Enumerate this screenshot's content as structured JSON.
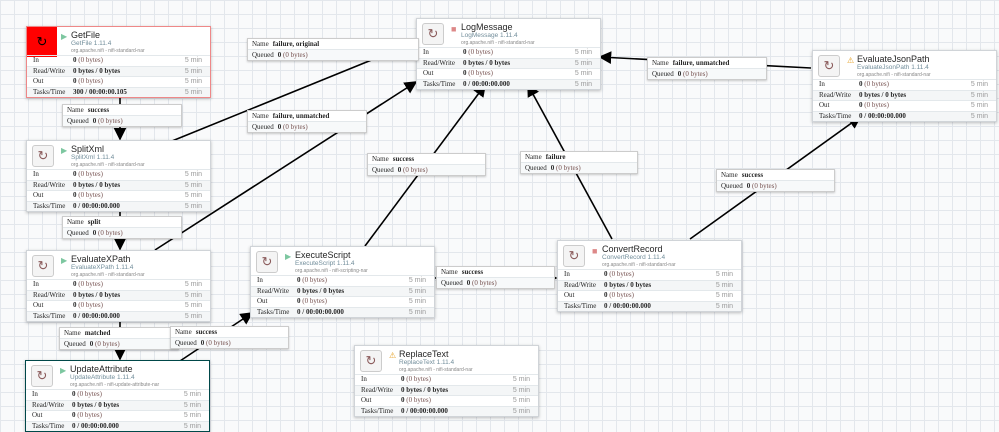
{
  "canvas": {
    "grid": true
  },
  "row_labels": {
    "in": "In",
    "rw": "Read/Write",
    "out": "Out",
    "tasks": "Tasks/Time"
  },
  "conn_labels": {
    "name": "Name",
    "queued": "Queued"
  },
  "processors": [
    {
      "id": "getfile",
      "name": "GetFile",
      "type": "GetFile 1.11.4",
      "bundle": "org.apache.nifi - nifi-standard-nar",
      "state": "running",
      "icon": "error-icon",
      "in": [
        "0",
        "(0 bytes)"
      ],
      "rw": "0 bytes / 0 bytes",
      "out": [
        "0",
        "(0 bytes)"
      ],
      "tasks": "300 / 00:00:00.105",
      "time": "5 min"
    },
    {
      "id": "splitxml",
      "name": "SplitXml",
      "type": "SplitXml 1.11.4",
      "bundle": "org.apache.nifi - nifi-standard-nar",
      "state": "running",
      "icon": "processor-icon",
      "in": [
        "0",
        "(0 bytes)"
      ],
      "rw": "0 bytes / 0 bytes",
      "out": [
        "0",
        "(0 bytes)"
      ],
      "tasks": "0 / 00:00:00.000",
      "time": "5 min"
    },
    {
      "id": "evaluatexpath",
      "name": "EvaluateXPath",
      "type": "EvaluateXPath 1.11.4",
      "bundle": "org.apache.nifi - nifi-standard-nar",
      "state": "running",
      "icon": "processor-icon",
      "in": [
        "0",
        "(0 bytes)"
      ],
      "rw": "0 bytes / 0 bytes",
      "out": [
        "0",
        "(0 bytes)"
      ],
      "tasks": "0 / 00:00:00.000",
      "time": "5 min"
    },
    {
      "id": "updateattribute",
      "name": "UpdateAttribute",
      "type": "UpdateAttribute 1.11.4",
      "bundle": "org.apache.nifi - nifi-update-attribute-nar",
      "state": "running",
      "icon": "processor-icon",
      "selected": true,
      "in": [
        "0",
        "(0 bytes)"
      ],
      "rw": "0 bytes / 0 bytes",
      "out": [
        "0",
        "(0 bytes)"
      ],
      "tasks": "0 / 00:00:00.000",
      "time": "5 min"
    },
    {
      "id": "logmessage",
      "name": "LogMessage",
      "type": "LogMessage 1.11.4",
      "bundle": "org.apache.nifi - nifi-standard-nar",
      "state": "stopped",
      "icon": "processor-icon",
      "in": [
        "0",
        "(0 bytes)"
      ],
      "rw": "0 bytes / 0 bytes",
      "out": [
        "0",
        "(0 bytes)"
      ],
      "tasks": "0 / 00:00:00.000",
      "time": "5 min"
    },
    {
      "id": "executescript",
      "name": "ExecuteScript",
      "type": "ExecuteScript 1.11.4",
      "bundle": "org.apache.nifi - nifi-scripting-nar",
      "state": "running",
      "icon": "processor-icon",
      "restricted": true,
      "in": [
        "0",
        "(0 bytes)"
      ],
      "rw": "0 bytes / 0 bytes",
      "out": [
        "0",
        "(0 bytes)"
      ],
      "tasks": "0 / 00:00:00.000",
      "time": "5 min"
    },
    {
      "id": "convertrecord",
      "name": "ConvertRecord",
      "type": "ConvertRecord 1.11.4",
      "bundle": "org.apache.nifi - nifi-standard-nar",
      "state": "stopped",
      "icon": "processor-icon",
      "in": [
        "0",
        "(0 bytes)"
      ],
      "rw": "0 bytes / 0 bytes",
      "out": [
        "0",
        "(0 bytes)"
      ],
      "tasks": "0 / 00:00:00.000",
      "time": "5 min"
    },
    {
      "id": "evaluatejsonpath",
      "name": "EvaluateJsonPath",
      "type": "EvaluateJsonPath 1.11.4",
      "bundle": "org.apache.nifi - nifi-standard-nar",
      "state": "invalid",
      "icon": "processor-icon",
      "in": [
        "0",
        "(0 bytes)"
      ],
      "rw": "0 bytes / 0 bytes",
      "out": [
        "0",
        "(0 bytes)"
      ],
      "tasks": "0 / 00:00:00.000",
      "time": "5 min"
    },
    {
      "id": "replacetext",
      "name": "ReplaceText",
      "type": "ReplaceText 1.11.4",
      "bundle": "org.apache.nifi - nifi-standard-nar",
      "state": "invalid",
      "icon": "processor-icon",
      "in": [
        "0",
        "(0 bytes)"
      ],
      "rw": "0 bytes / 0 bytes",
      "out": [
        "0",
        "(0 bytes)"
      ],
      "tasks": "0 / 00:00:00.000",
      "time": "5 min"
    }
  ],
  "connections": [
    {
      "id": "c1",
      "name": "success",
      "queued": [
        "0",
        "(0 bytes)"
      ]
    },
    {
      "id": "c2",
      "name": "split",
      "queued": [
        "0",
        "(0 bytes)"
      ]
    },
    {
      "id": "c3",
      "name": "matched",
      "queued": [
        "0",
        "(0 bytes)"
      ]
    },
    {
      "id": "c4",
      "name": "failure, original",
      "queued": [
        "0",
        "(0 bytes)"
      ]
    },
    {
      "id": "c5",
      "name": "failure, unmatched",
      "queued": [
        "0",
        "(0 bytes)"
      ]
    },
    {
      "id": "c6",
      "name": "success",
      "queued": [
        "0",
        "(0 bytes)"
      ]
    },
    {
      "id": "c7",
      "name": "success",
      "queued": [
        "0",
        "(0 bytes)"
      ]
    },
    {
      "id": "c8",
      "name": "success",
      "queued": [
        "0",
        "(0 bytes)"
      ]
    },
    {
      "id": "c9",
      "name": "failure",
      "queued": [
        "0",
        "(0 bytes)"
      ]
    },
    {
      "id": "c10",
      "name": "success",
      "queued": [
        "0",
        "(0 bytes)"
      ]
    },
    {
      "id": "c11",
      "name": "failure, unmatched",
      "queued": [
        "0",
        "(0 bytes)"
      ]
    }
  ]
}
